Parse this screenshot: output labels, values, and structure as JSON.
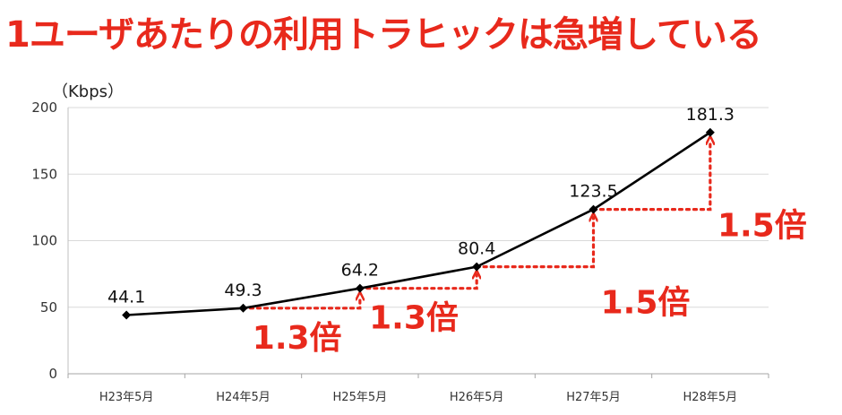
{
  "title": "1ユーザあたりの利用トラヒックは急増している",
  "chart_data": {
    "type": "line",
    "ylabel": "（Kbps）",
    "ylim": [
      0,
      200
    ],
    "yticks": [
      0,
      50,
      100,
      150,
      200
    ],
    "categories": [
      "H23年5月",
      "H24年5月",
      "H25年5月",
      "H26年5月",
      "H27年5月",
      "H28年5月"
    ],
    "series": [
      {
        "values": [
          44.1,
          49.3,
          64.2,
          80.4,
          123.5,
          181.3
        ],
        "labels": [
          "44.1",
          "49.3",
          "64.2",
          "80.4",
          "123.5",
          "181.3"
        ]
      }
    ],
    "grid": true,
    "annotations": [
      {
        "from_index": 1,
        "to_index": 2,
        "text": "1.3倍"
      },
      {
        "from_index": 2,
        "to_index": 3,
        "text": "1.3倍"
      },
      {
        "from_index": 3,
        "to_index": 4,
        "text": "1.5倍"
      },
      {
        "from_index": 4,
        "to_index": 5,
        "text": "1.5倍"
      }
    ],
    "colors": {
      "line": "#000000",
      "annotation": "#e8291c",
      "grid": "#d9d9d9",
      "title": "#e8291c"
    }
  }
}
